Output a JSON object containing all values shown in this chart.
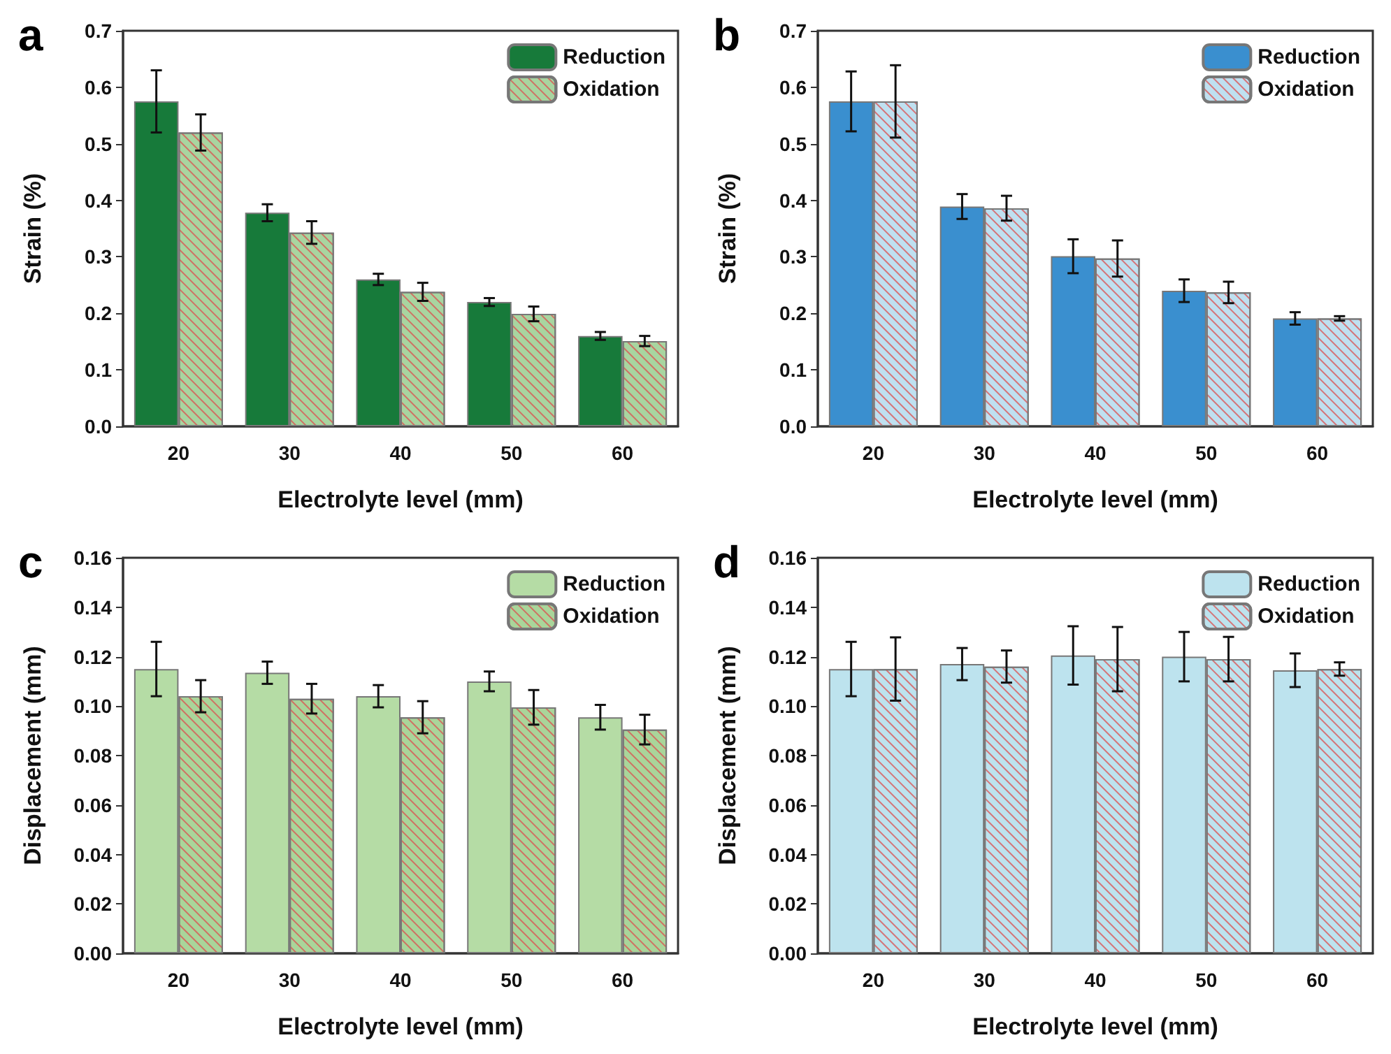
{
  "chart_data": [
    {
      "type": "bar",
      "title": "a",
      "xlabel": "Electrolyte level (mm)",
      "ylabel": "Strain (%)",
      "categories": [
        "20",
        "30",
        "40",
        "50",
        "60"
      ],
      "legend": "top right",
      "ylim": [
        0,
        0.7
      ],
      "yticks": [
        {
          "value": 0,
          "label": "0.0"
        },
        0.1,
        0.2,
        0.3,
        0.4,
        0.5,
        0.6,
        0.7
      ],
      "series": [
        {
          "name": "Reduction",
          "color": "#177a3a",
          "values": [
            0.575,
            0.378,
            0.26,
            0.22,
            0.16
          ],
          "errors": [
            0.055,
            0.015,
            0.01,
            0.007,
            0.007
          ]
        },
        {
          "name": "Oxidation",
          "color": "#a8d5a0",
          "values": [
            0.52,
            0.343,
            0.238,
            0.199,
            0.151
          ],
          "errors": [
            0.032,
            0.02,
            0.016,
            0.013,
            0.009
          ]
        }
      ]
    },
    {
      "type": "bar",
      "title": "b",
      "xlabel": "Electrolyte level (mm)",
      "ylabel": "Strain (%)",
      "categories": [
        "20",
        "30",
        "40",
        "50",
        "60"
      ],
      "legend": "top right",
      "ylim": [
        0,
        0.7
      ],
      "yticks": [
        {
          "value": 0,
          "label": "0.0"
        },
        0.1,
        0.2,
        0.3,
        0.4,
        0.5,
        0.6,
        0.7
      ],
      "series": [
        {
          "name": "Reduction",
          "color": "#3a8fcf",
          "values": [
            0.575,
            0.389,
            0.301,
            0.24,
            0.191
          ],
          "errors": [
            0.053,
            0.022,
            0.03,
            0.02,
            0.011
          ]
        },
        {
          "name": "Oxidation",
          "color": "#bfe0f0",
          "values": [
            0.575,
            0.386,
            0.297,
            0.237,
            0.191
          ],
          "errors": [
            0.064,
            0.022,
            0.032,
            0.019,
            0.004
          ]
        }
      ]
    },
    {
      "type": "bar",
      "title": "c",
      "xlabel": "Electrolyte level (mm)",
      "ylabel": "Displacement (mm)",
      "categories": [
        "20",
        "30",
        "40",
        "50",
        "60"
      ],
      "legend": "top right",
      "ylim": [
        0,
        0.16
      ],
      "yticks": [
        {
          "value": 0,
          "label": "0.00"
        },
        {
          "value": 0.02,
          "label": "0.02"
        },
        {
          "value": 0.04,
          "label": "0.04"
        },
        {
          "value": 0.06,
          "label": "0.06"
        },
        {
          "value": 0.08,
          "label": "0.08"
        },
        {
          "value": 0.1,
          "label": "0.10"
        },
        {
          "value": 0.12,
          "label": "0.12"
        },
        {
          "value": 0.14,
          "label": "0.14"
        },
        {
          "value": 0.16,
          "label": "0.16"
        }
      ],
      "series": [
        {
          "name": "Reduction",
          "color": "#b5dca5",
          "values": [
            0.115,
            0.1135,
            0.104,
            0.11,
            0.0955
          ],
          "errors": [
            0.011,
            0.0045,
            0.0045,
            0.004,
            0.005
          ]
        },
        {
          "name": "Oxidation",
          "color": "#a9d59a",
          "values": [
            0.104,
            0.103,
            0.0955,
            0.0995,
            0.0905
          ],
          "errors": [
            0.0065,
            0.006,
            0.0065,
            0.007,
            0.006
          ]
        }
      ]
    },
    {
      "type": "bar",
      "title": "d",
      "xlabel": "Electrolyte level (mm)",
      "ylabel": "Displacement (mm)",
      "categories": [
        "20",
        "30",
        "40",
        "50",
        "60"
      ],
      "legend": "top right",
      "ylim": [
        0,
        0.16
      ],
      "yticks": [
        {
          "value": 0,
          "label": "0.00"
        },
        {
          "value": 0.02,
          "label": "0.02"
        },
        {
          "value": 0.04,
          "label": "0.04"
        },
        {
          "value": 0.06,
          "label": "0.06"
        },
        {
          "value": 0.08,
          "label": "0.08"
        },
        {
          "value": 0.1,
          "label": "0.10"
        },
        {
          "value": 0.12,
          "label": "0.12"
        },
        {
          "value": 0.14,
          "label": "0.14"
        },
        {
          "value": 0.16,
          "label": "0.16"
        }
      ],
      "series": [
        {
          "name": "Reduction",
          "color": "#bde3ee",
          "values": [
            0.115,
            0.117,
            0.1205,
            0.12,
            0.1145
          ],
          "errors": [
            0.011,
            0.0065,
            0.0118,
            0.01,
            0.0068
          ]
        },
        {
          "name": "Oxidation",
          "color": "#bde3ee",
          "values": [
            0.115,
            0.116,
            0.119,
            0.119,
            0.115
          ],
          "errors": [
            0.0128,
            0.0065,
            0.013,
            0.009,
            0.0027
          ]
        }
      ]
    }
  ]
}
